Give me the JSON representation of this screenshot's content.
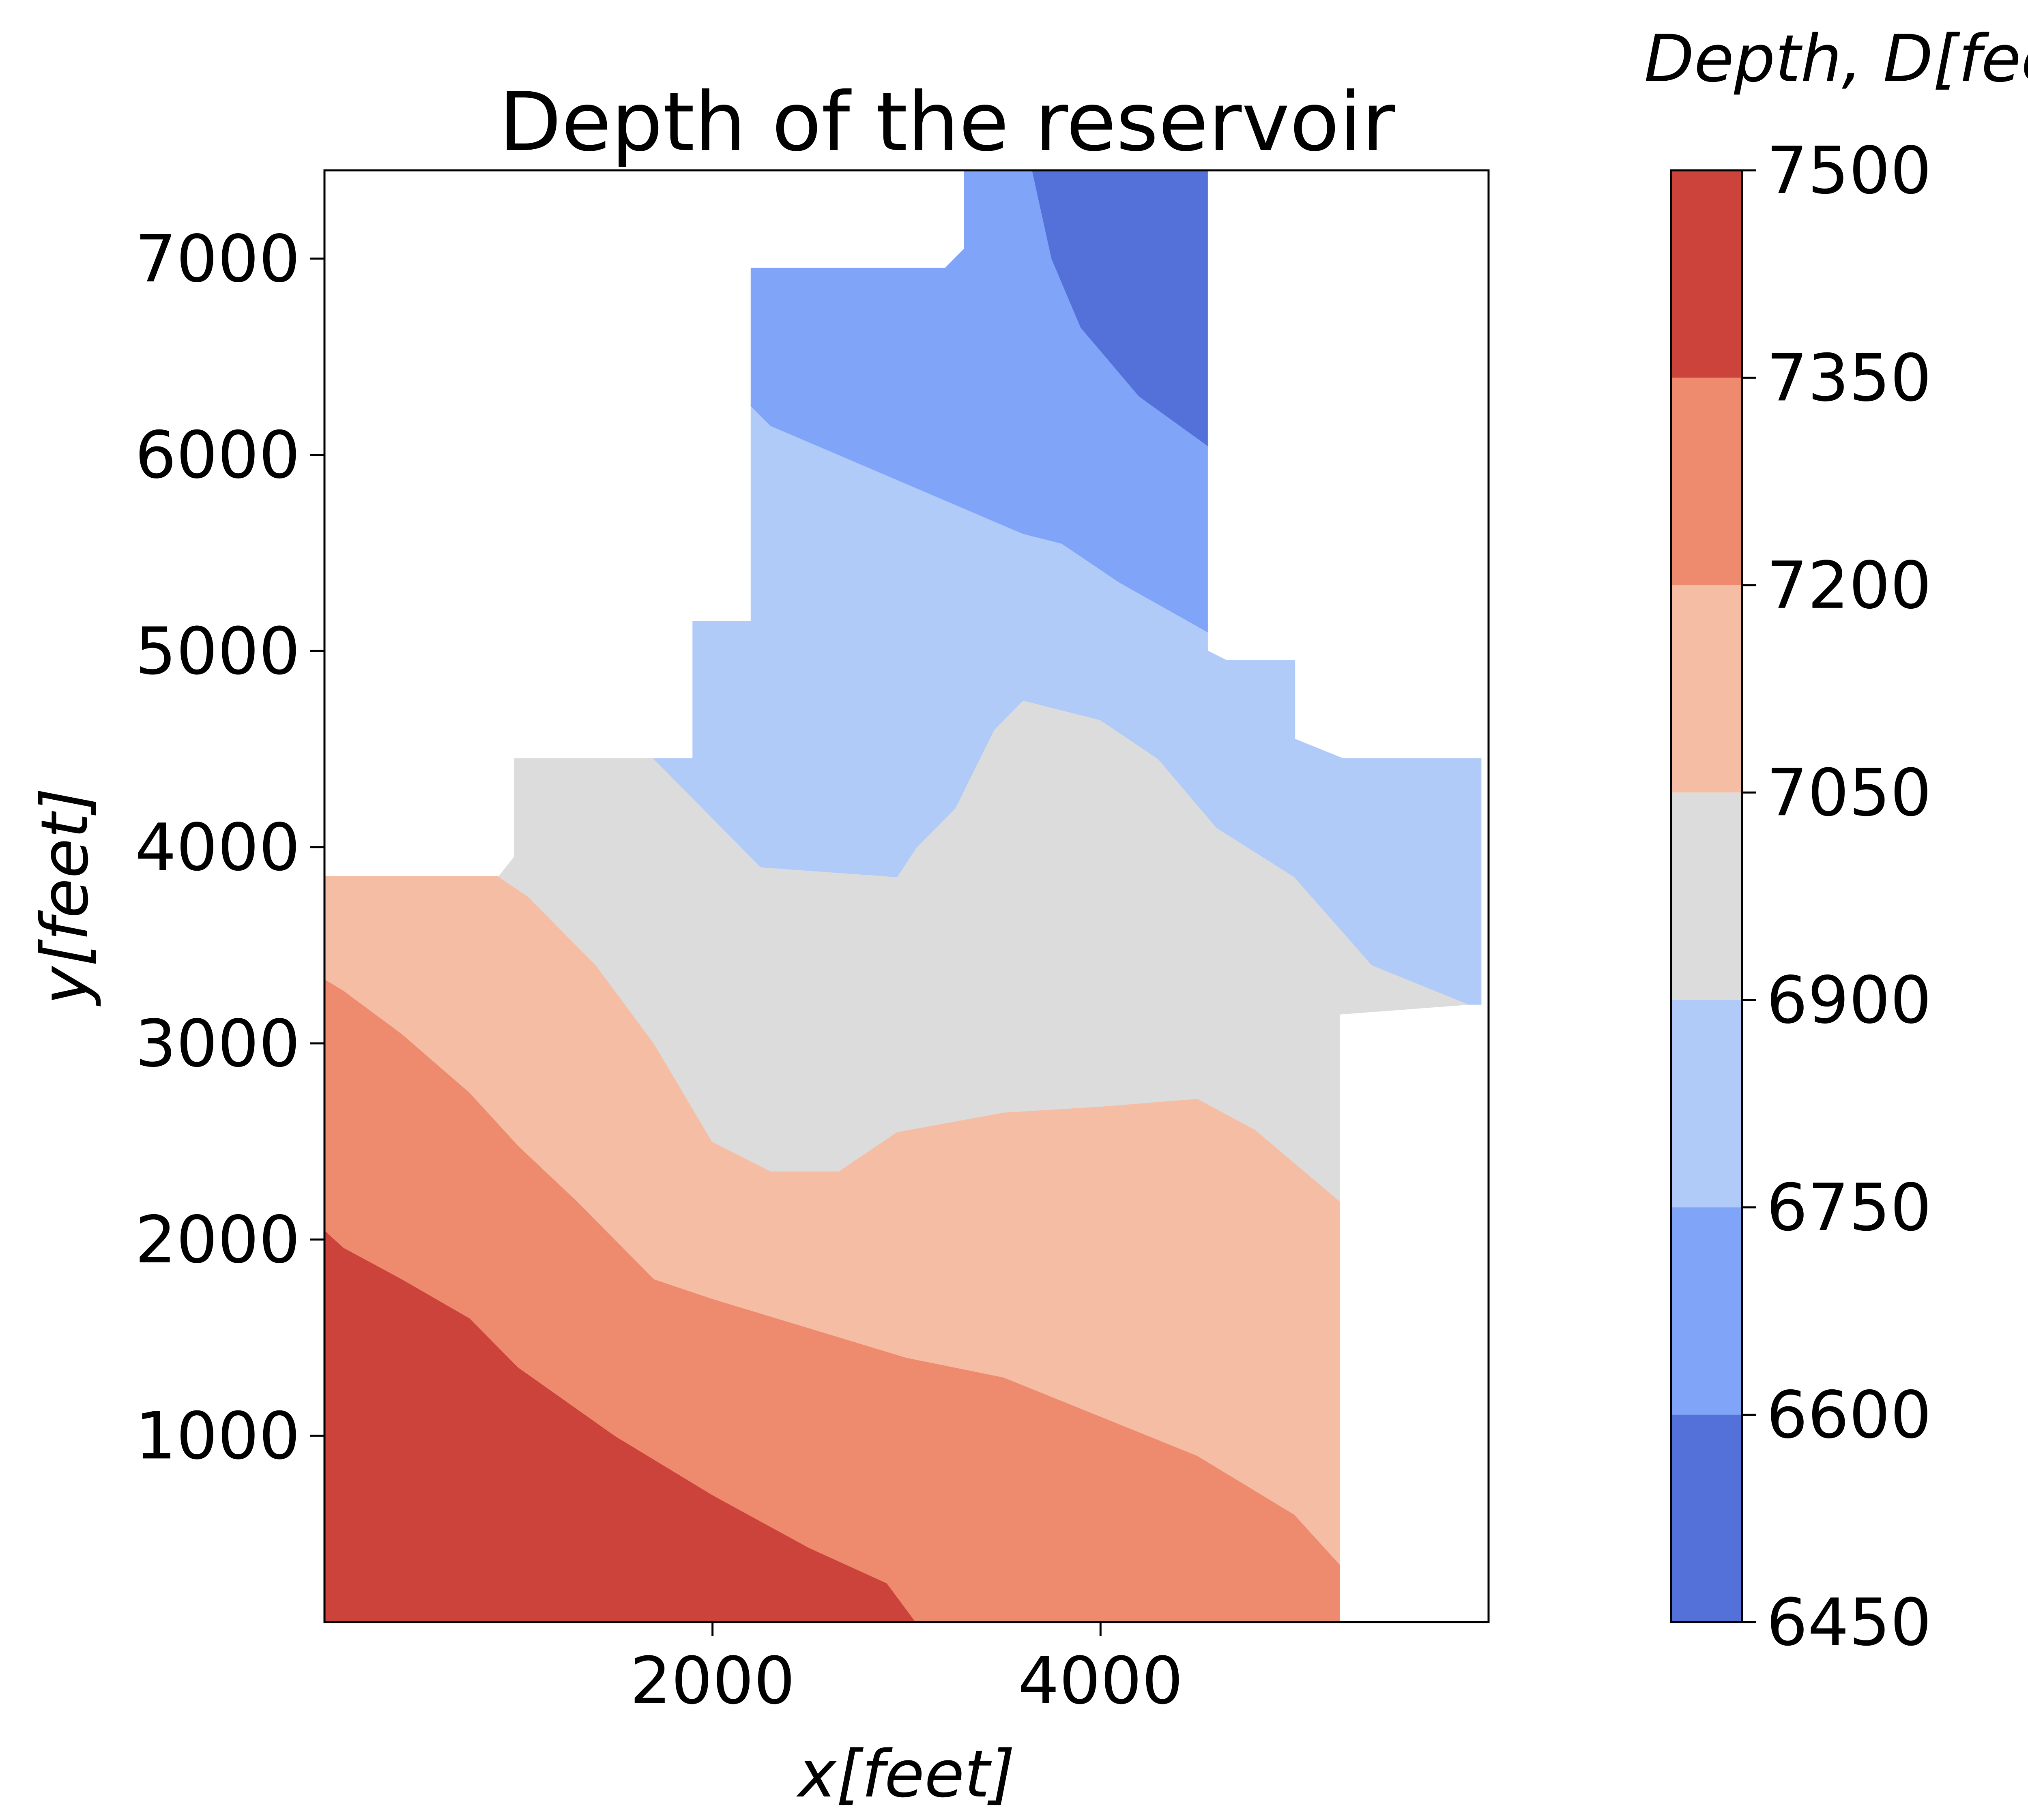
{
  "chart_data": {
    "type": "filled_contour",
    "title": "Depth of the reservoir",
    "xlabel": "x[feet]",
    "ylabel": "y[feet]",
    "xlim": [
      0,
      6000
    ],
    "ylim": [
      50,
      7450
    ],
    "xticks": [
      2000,
      4000
    ],
    "yticks": [
      1000,
      2000,
      3000,
      4000,
      5000,
      6000,
      7000
    ],
    "colorbar": {
      "label": "Depth, D[feet]",
      "levels": [
        6450,
        6600,
        6750,
        6900,
        7050,
        7200,
        7350,
        7500
      ],
      "colors": [
        "#5470d9",
        "#80a4f7",
        "#b1cbf9",
        "#dcdcdc",
        "#f5bea4",
        "#ee8b6e",
        "#cc433b"
      ]
    },
    "bands": [
      {
        "range": [
          7350,
          7500
        ],
        "color": "#cc433b",
        "polygons": [
          [
            [
              0,
              2050
            ],
            [
              100,
              1960
            ],
            [
              400,
              1800
            ],
            [
              750,
              1600
            ],
            [
              1000,
              1350
            ],
            [
              1500,
              1000
            ],
            [
              2000,
              700
            ],
            [
              2500,
              430
            ],
            [
              2900,
              250
            ],
            [
              3050,
              50
            ],
            [
              0,
              50
            ]
          ]
        ]
      },
      {
        "range": [
          7200,
          7350
        ],
        "color": "#ee8b6e",
        "polygons": [
          [
            [
              0,
              3330
            ],
            [
              100,
              3270
            ],
            [
              400,
              3050
            ],
            [
              750,
              2750
            ],
            [
              1000,
              2480
            ],
            [
              1300,
              2200
            ],
            [
              1700,
              1800
            ],
            [
              2000,
              1700
            ],
            [
              2500,
              1550
            ],
            [
              3000,
              1400
            ],
            [
              3500,
              1300
            ],
            [
              4000,
              1100
            ],
            [
              4500,
              900
            ],
            [
              5000,
              600
            ],
            [
              5230,
              350
            ],
            [
              5230,
              50
            ],
            [
              3050,
              50
            ],
            [
              2900,
              250
            ],
            [
              2500,
              430
            ],
            [
              2000,
              700
            ],
            [
              1500,
              1000
            ],
            [
              1000,
              1350
            ],
            [
              750,
              1600
            ],
            [
              400,
              1800
            ],
            [
              100,
              1960
            ],
            [
              0,
              2050
            ]
          ]
        ]
      },
      {
        "range": [
          7050,
          7200
        ],
        "color": "#f5bea4",
        "polygons": [
          [
            [
              0,
              3850
            ],
            [
              900,
              3850
            ],
            [
              1050,
              3750
            ],
            [
              1400,
              3400
            ],
            [
              1700,
              3000
            ],
            [
              2000,
              2500
            ],
            [
              2300,
              2350
            ],
            [
              2650,
              2350
            ],
            [
              2950,
              2550
            ],
            [
              3500,
              2650
            ],
            [
              4000,
              2680
            ],
            [
              4500,
              2720
            ],
            [
              4800,
              2560
            ],
            [
              5230,
              2200
            ],
            [
              5230,
              350
            ],
            [
              5000,
              600
            ],
            [
              4500,
              900
            ],
            [
              4000,
              1100
            ],
            [
              3500,
              1300
            ],
            [
              3000,
              1400
            ],
            [
              2500,
              1550
            ],
            [
              2000,
              1700
            ],
            [
              1700,
              1800
            ],
            [
              1300,
              2200
            ],
            [
              1000,
              2480
            ],
            [
              750,
              2750
            ],
            [
              400,
              3050
            ],
            [
              100,
              3270
            ],
            [
              0,
              3330
            ]
          ]
        ]
      },
      {
        "range": [
          6900,
          7050
        ],
        "color": "#dcdcdc",
        "polygons": [
          [
            [
              900,
              3850
            ],
            [
              980,
              3950
            ],
            [
              980,
              4450
            ],
            [
              1700,
              4450
            ],
            [
              1900,
              4250
            ],
            [
              2250,
              3900
            ],
            [
              2950,
              3850
            ],
            [
              3050,
              4000
            ],
            [
              3250,
              4200
            ],
            [
              3450,
              4600
            ],
            [
              3600,
              4750
            ],
            [
              4000,
              4650
            ],
            [
              4300,
              4450
            ],
            [
              4600,
              4100
            ],
            [
              5000,
              3850
            ],
            [
              5400,
              3400
            ],
            [
              5900,
              3200
            ],
            [
              5230,
              3150
            ],
            [
              5230,
              2200
            ],
            [
              4800,
              2560
            ],
            [
              4500,
              2720
            ],
            [
              4000,
              2680
            ],
            [
              3500,
              2650
            ],
            [
              2950,
              2550
            ],
            [
              2650,
              2350
            ],
            [
              2300,
              2350
            ],
            [
              2000,
              2500
            ],
            [
              1700,
              3000
            ],
            [
              1400,
              3400
            ],
            [
              1050,
              3750
            ]
          ]
        ]
      },
      {
        "range": [
          6750,
          6900
        ],
        "color": "#b1cbf9",
        "polygons": [
          [
            [
              1700,
              4450
            ],
            [
              1900,
              4450
            ],
            [
              1900,
              5150
            ],
            [
              2200,
              5150
            ],
            [
              2200,
              6250
            ],
            [
              2300,
              6150
            ],
            [
              3600,
              5600
            ],
            [
              3800,
              5550
            ],
            [
              4100,
              5350
            ],
            [
              4550,
              5100
            ],
            [
              4550,
              5000
            ],
            [
              4650,
              4950
            ],
            [
              5000,
              4950
            ],
            [
              5000,
              4550
            ],
            [
              5250,
              4450
            ],
            [
              5960,
              4450
            ],
            [
              5960,
              3200
            ],
            [
              5900,
              3200
            ],
            [
              5400,
              3400
            ],
            [
              5000,
              3850
            ],
            [
              4600,
              4100
            ],
            [
              4300,
              4450
            ],
            [
              4000,
              4650
            ],
            [
              3600,
              4750
            ],
            [
              3450,
              4600
            ],
            [
              3250,
              4200
            ],
            [
              3050,
              4000
            ],
            [
              2950,
              3850
            ],
            [
              2250,
              3900
            ],
            [
              1900,
              4250
            ]
          ]
        ]
      },
      {
        "range": [
          6600,
          6750
        ],
        "color": "#80a4f7",
        "polygons": [
          [
            [
              2200,
              6950
            ],
            [
              3200,
              6950
            ],
            [
              3300,
              7050
            ],
            [
              3300,
              7450
            ],
            [
              3650,
              7450
            ],
            [
              3750,
              7000
            ],
            [
              3900,
              6650
            ],
            [
              4200,
              6300
            ],
            [
              4550,
              6050
            ],
            [
              4550,
              5100
            ],
            [
              4100,
              5350
            ],
            [
              3800,
              5550
            ],
            [
              3600,
              5600
            ],
            [
              2300,
              6150
            ],
            [
              2200,
              6250
            ]
          ]
        ]
      },
      {
        "range": [
          6450,
          6600
        ],
        "color": "#5470d9",
        "polygons": [
          [
            [
              3650,
              7450
            ],
            [
              4550,
              7450
            ],
            [
              4550,
              6050
            ],
            [
              4200,
              6300
            ],
            [
              3900,
              6650
            ],
            [
              3750,
              7000
            ]
          ]
        ]
      }
    ]
  }
}
